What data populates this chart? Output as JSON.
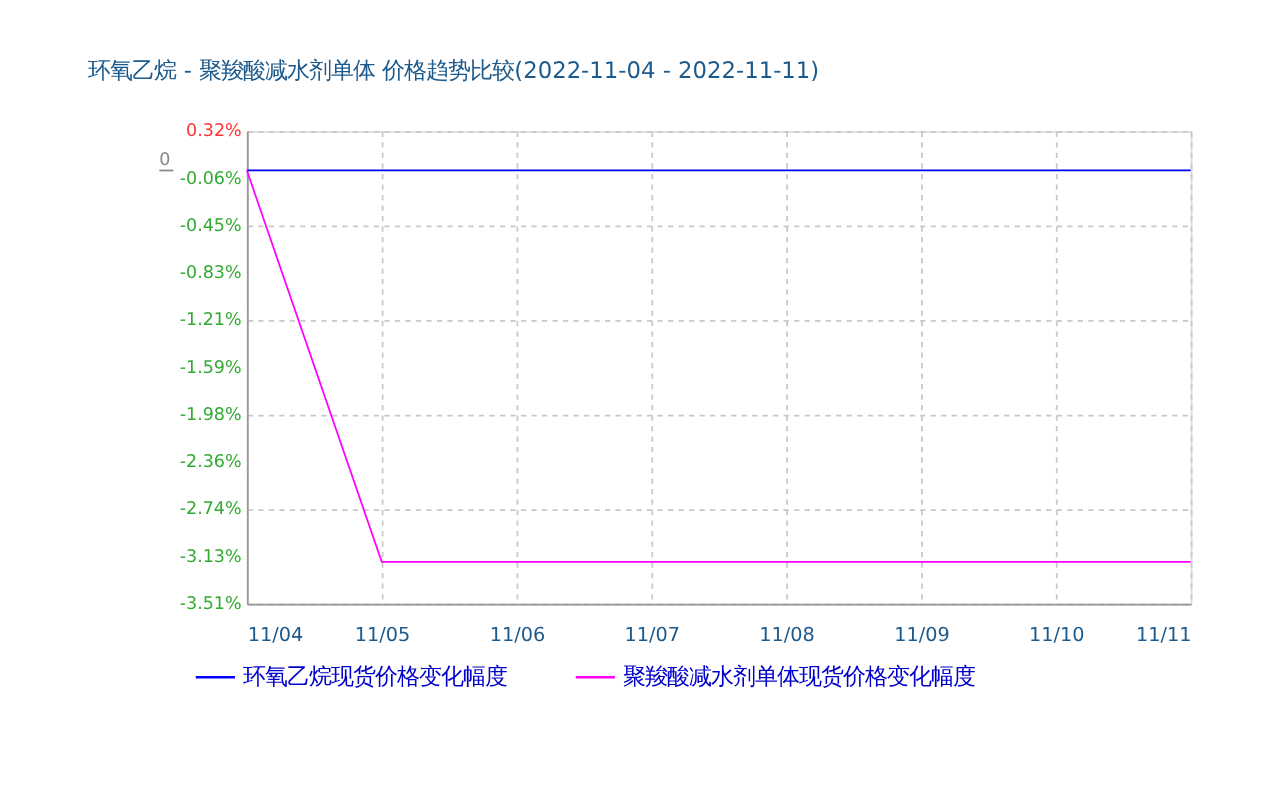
{
  "chart_data": {
    "type": "line",
    "title": "环氧乙烷 - 聚羧酸减水剂单体 价格趋势比较(2022-11-04 - 2022-11-11)",
    "categories": [
      "11/04",
      "11/05",
      "11/06",
      "11/07",
      "11/08",
      "11/09",
      "11/10",
      "11/11"
    ],
    "series": [
      {
        "name": "环氧乙烷现货价格变化幅度",
        "color": "#0000ff",
        "values": [
          0,
          0,
          0,
          0,
          0,
          0,
          0,
          0
        ]
      },
      {
        "name": "聚羧酸减水剂单体现货价格变化幅度",
        "color": "#ff00ff",
        "values": [
          0,
          -3.17,
          -3.17,
          -3.17,
          -3.17,
          -3.17,
          -3.17,
          -3.17
        ]
      }
    ],
    "ylim": [
      -3.51,
      0.32
    ],
    "yticks": [
      {
        "value": 0.32,
        "label": "0.32%"
      },
      {
        "value": -0.063,
        "label": "-0.06%"
      },
      {
        "value": -0.446,
        "label": "-0.45%"
      },
      {
        "value": -0.829,
        "label": "-0.83%"
      },
      {
        "value": -1.212,
        "label": "-1.21%"
      },
      {
        "value": -1.595,
        "label": "-1.59%"
      },
      {
        "value": -1.978,
        "label": "-1.98%"
      },
      {
        "value": -2.361,
        "label": "-2.36%"
      },
      {
        "value": -2.744,
        "label": "-2.74%"
      },
      {
        "value": -3.127,
        "label": "-3.13%"
      },
      {
        "value": -3.51,
        "label": "-3.51%"
      }
    ],
    "ref_lines": [
      {
        "axis": "y",
        "value": 0,
        "label": "0"
      }
    ],
    "grid": true,
    "legend": "bottom",
    "marker": "none",
    "line_style": "solid"
  }
}
